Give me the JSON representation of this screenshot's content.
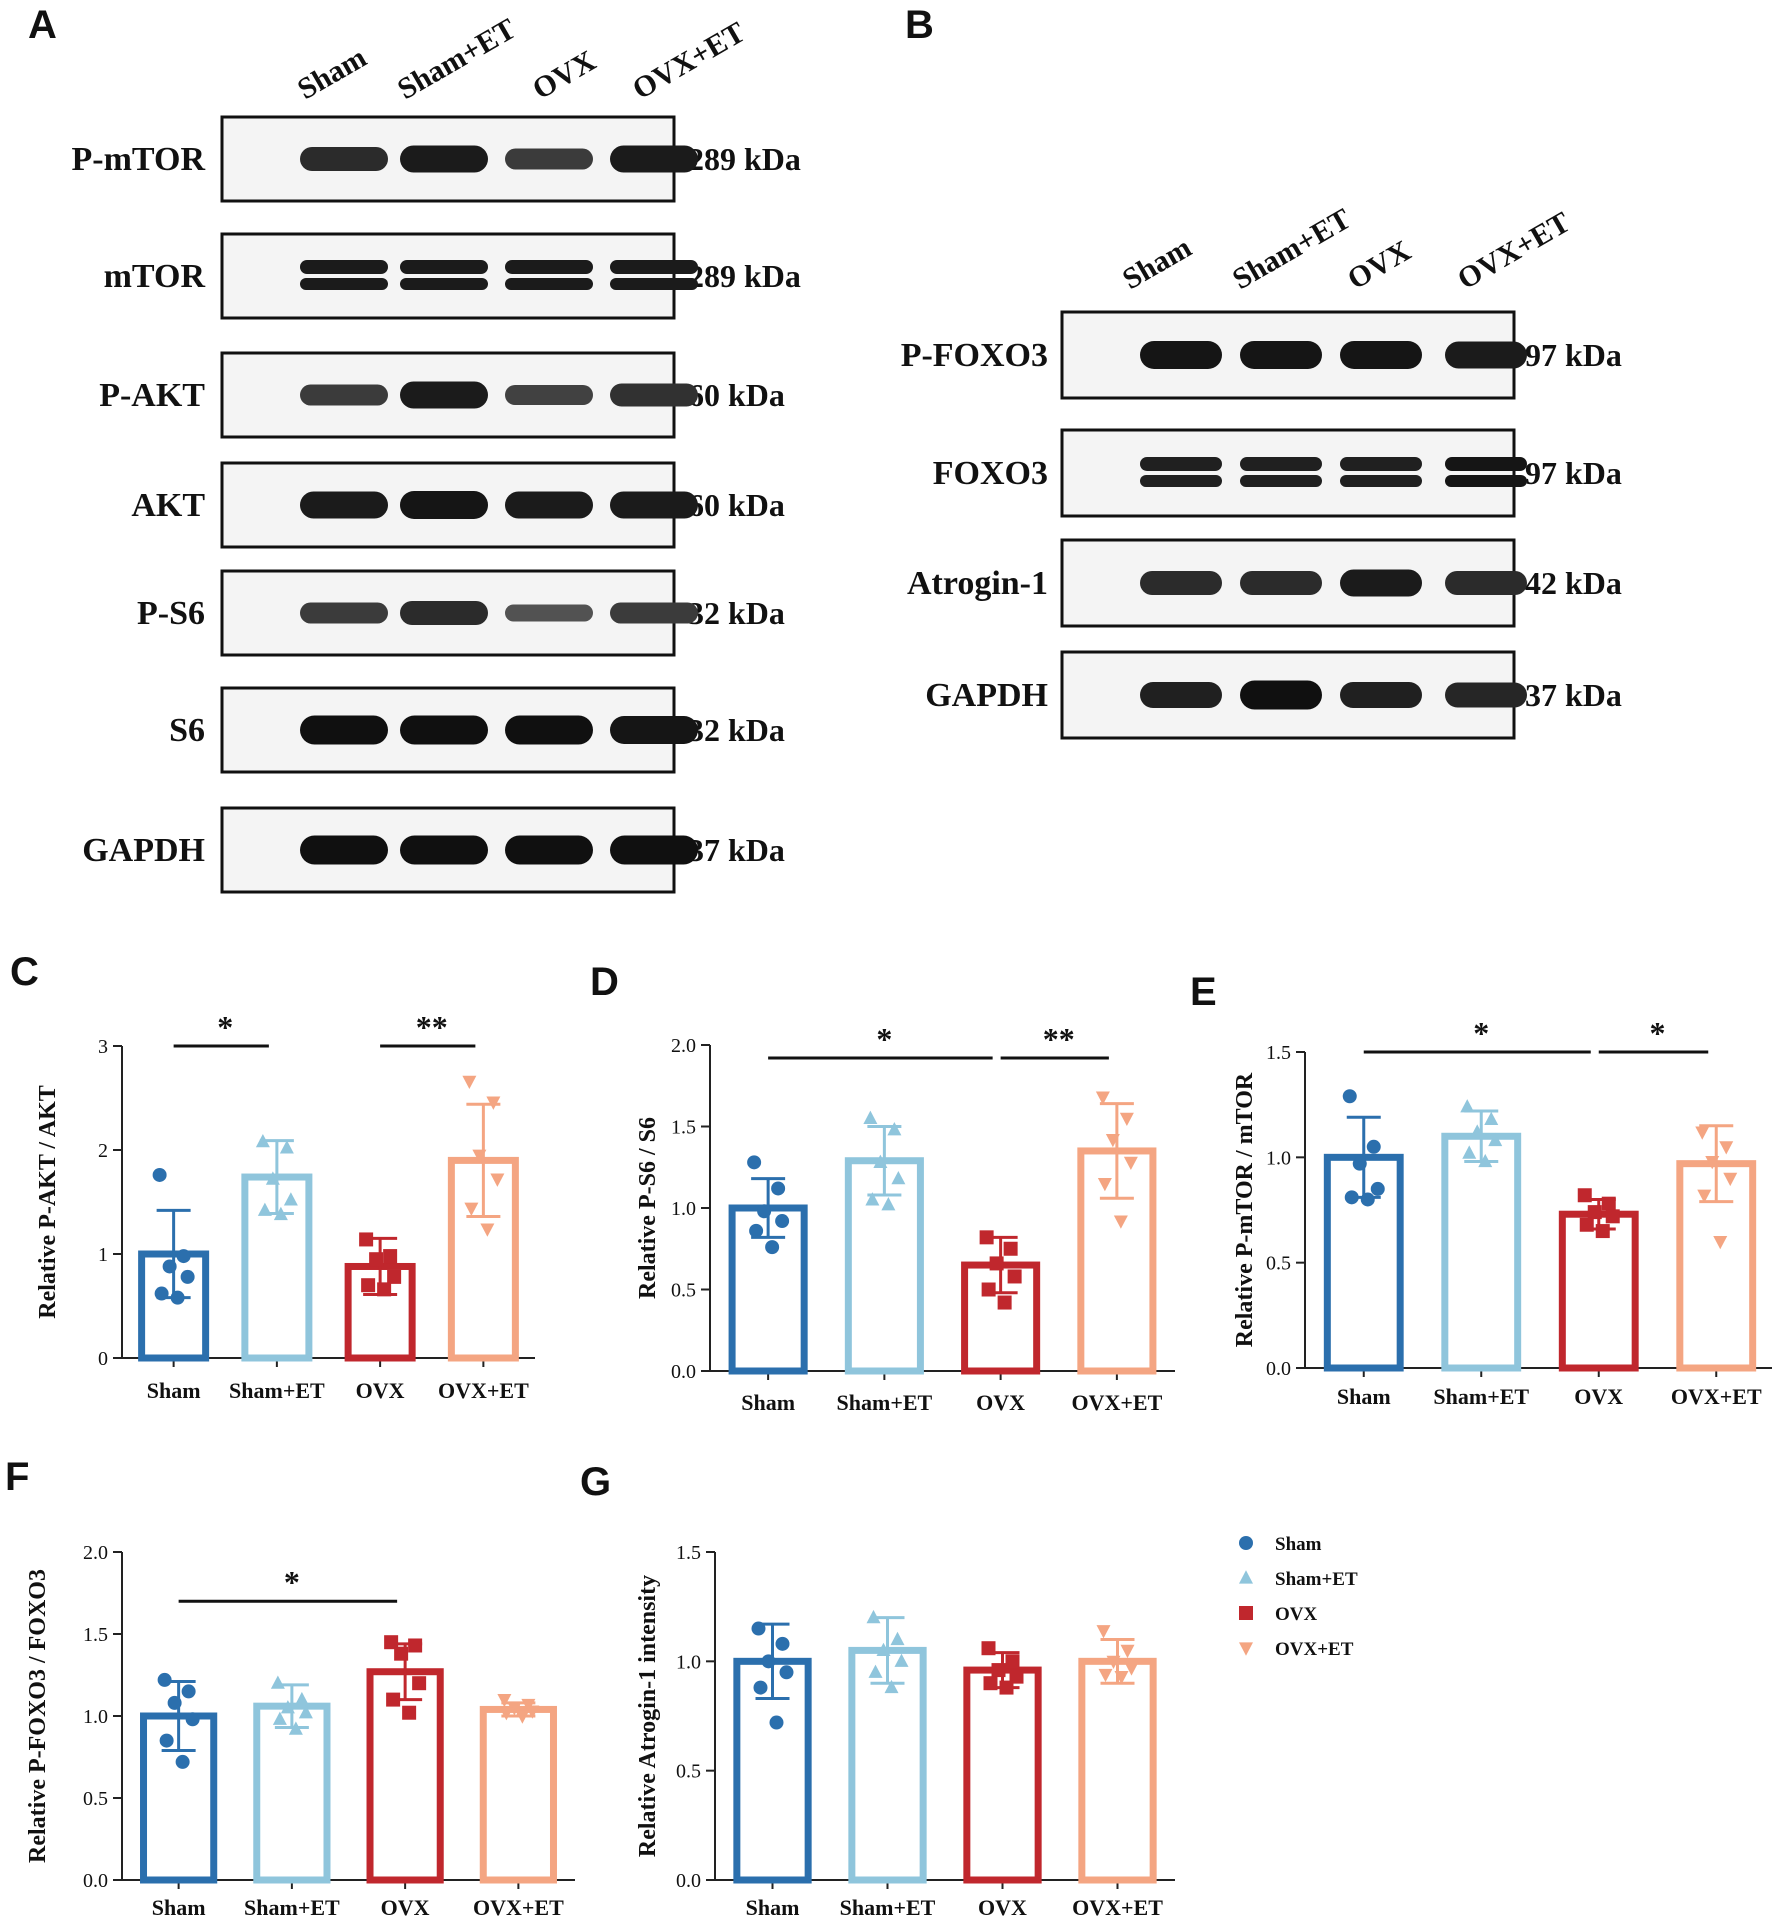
{
  "figure": {
    "panel_letters": [
      "A",
      "B",
      "C",
      "D",
      "E",
      "F",
      "G"
    ],
    "legend": [
      {
        "label": "Sham",
        "marker": "circle",
        "color": "#2b6fad"
      },
      {
        "label": "Sham+ET",
        "marker": "triangle-up",
        "color": "#8fc5dc"
      },
      {
        "label": "OVX",
        "marker": "square",
        "color": "#c0272d"
      },
      {
        "label": "OVX+ET",
        "marker": "triangle-down",
        "color": "#f4a582"
      }
    ]
  },
  "blots": [
    {
      "letter": "A",
      "lanes": [
        "Sham",
        "Sham+ET",
        "OVX",
        "OVX+ET"
      ],
      "rows": [
        {
          "protein": "P-mTOR",
          "size": "289 kDa",
          "intensity": [
            0.7,
            0.85,
            0.55,
            0.85
          ],
          "double": false
        },
        {
          "protein": "mTOR",
          "size": "289 kDa",
          "intensity": [
            0.85,
            0.85,
            0.85,
            0.85
          ],
          "double": true
        },
        {
          "protein": "P-AKT",
          "size": "60 kDa",
          "intensity": [
            0.55,
            0.85,
            0.5,
            0.65
          ],
          "double": false
        },
        {
          "protein": "AKT",
          "size": "60 kDa",
          "intensity": [
            0.85,
            0.9,
            0.85,
            0.85
          ],
          "double": false
        },
        {
          "protein": "P-S6",
          "size": "32 kDa",
          "intensity": [
            0.55,
            0.7,
            0.35,
            0.55
          ],
          "double": false
        },
        {
          "protein": "S6",
          "size": "32 kDa",
          "intensity": [
            0.95,
            0.95,
            0.95,
            0.9
          ],
          "double": false
        },
        {
          "protein": "GAPDH",
          "size": "37 kDa",
          "intensity": [
            0.95,
            0.95,
            0.95,
            0.95
          ],
          "double": false
        }
      ]
    },
    {
      "letter": "B",
      "lanes": [
        "Sham",
        "Sham+ET",
        "OVX",
        "OVX+ET"
      ],
      "rows": [
        {
          "protein": "P-FOXO3",
          "size": "97 kDa",
          "intensity": [
            0.9,
            0.9,
            0.9,
            0.85
          ],
          "double": false
        },
        {
          "protein": "FOXO3",
          "size": "97 kDa",
          "intensity": [
            0.8,
            0.8,
            0.8,
            0.9
          ],
          "double": true
        },
        {
          "protein": "Atrogin-1",
          "size": "42 kDa",
          "intensity": [
            0.7,
            0.7,
            0.85,
            0.7
          ],
          "double": false
        },
        {
          "protein": "GAPDH",
          "size": "37 kDa",
          "intensity": [
            0.8,
            0.95,
            0.8,
            0.75
          ],
          "double": false
        }
      ]
    }
  ],
  "chart_data": [
    {
      "type": "bar",
      "letter": "C",
      "categories": [
        "Sham",
        "Sham+ET",
        "OVX",
        "OVX+ET"
      ],
      "ylabel": "Relative P-AKT / AKT",
      "ylim": [
        0,
        3
      ],
      "yticks": [
        0,
        1,
        2,
        3
      ],
      "values": [
        1.0,
        1.74,
        0.88,
        1.9
      ],
      "sd": [
        0.42,
        0.35,
        0.27,
        0.54
      ],
      "points": [
        [
          1.76,
          0.98,
          0.88,
          0.78,
          0.62,
          0.58
        ],
        [
          2.08,
          2.02,
          1.72,
          1.52,
          1.42,
          1.38
        ],
        [
          1.14,
          0.98,
          0.95,
          0.78,
          0.7,
          0.66
        ],
        [
          2.66,
          2.46,
          1.95,
          1.72,
          1.44,
          1.24
        ]
      ],
      "significance": [
        {
          "from": 0,
          "to": 1,
          "label": "*",
          "y": 3.0
        },
        {
          "from": 2,
          "to": 3,
          "label": "**",
          "y": 3.0
        }
      ]
    },
    {
      "type": "bar",
      "letter": "D",
      "categories": [
        "Sham",
        "Sham+ET",
        "OVX",
        "OVX+ET"
      ],
      "ylabel": "Relative P-S6 / S6",
      "ylim": [
        0,
        2.0
      ],
      "yticks": [
        "0.0",
        "0.5",
        "1.0",
        "1.5",
        "2.0"
      ],
      "values": [
        1.0,
        1.29,
        0.65,
        1.35
      ],
      "sd": [
        0.18,
        0.21,
        0.17,
        0.29
      ],
      "points": [
        [
          1.28,
          1.12,
          0.98,
          0.92,
          0.86,
          0.76
        ],
        [
          1.55,
          1.48,
          1.28,
          1.18,
          1.05,
          1.02
        ],
        [
          0.82,
          0.75,
          0.66,
          0.58,
          0.5,
          0.42
        ],
        [
          1.68,
          1.55,
          1.42,
          1.28,
          1.15,
          0.92
        ]
      ],
      "significance": [
        {
          "from": 0,
          "to": 2,
          "label": "*",
          "y": 1.92
        },
        {
          "from": 2,
          "to": 3,
          "label": "**",
          "y": 1.92
        }
      ]
    },
    {
      "type": "bar",
      "letter": "E",
      "categories": [
        "Sham",
        "Sham+ET",
        "OVX",
        "OVX+ET"
      ],
      "ylabel": "Relative P-mTOR / mTOR",
      "ylim": [
        0,
        1.5
      ],
      "yticks": [
        "0.0",
        "0.5",
        "1.0",
        "1.5"
      ],
      "values": [
        1.0,
        1.1,
        0.73,
        0.97
      ],
      "sd": [
        0.19,
        0.12,
        0.07,
        0.18
      ],
      "points": [
        [
          1.29,
          1.05,
          0.97,
          0.85,
          0.81,
          0.8
        ],
        [
          1.24,
          1.18,
          1.12,
          1.08,
          1.02,
          0.98
        ],
        [
          0.82,
          0.78,
          0.74,
          0.72,
          0.68,
          0.65
        ],
        [
          1.12,
          1.05,
          0.98,
          0.9,
          0.82,
          0.6
        ]
      ],
      "significance": [
        {
          "from": 0,
          "to": 2,
          "label": "*",
          "y": 1.5
        },
        {
          "from": 2,
          "to": 3,
          "label": "*",
          "y": 1.5
        }
      ]
    },
    {
      "type": "bar",
      "letter": "F",
      "categories": [
        "Sham",
        "Sham+ET",
        "OVX",
        "OVX+ET"
      ],
      "ylabel": "Relative P-FOXO3 / FOXO3",
      "ylim": [
        0,
        2.0
      ],
      "yticks": [
        "0.0",
        "0.5",
        "1.0",
        "1.5",
        "2.0"
      ],
      "values": [
        1.0,
        1.06,
        1.27,
        1.04
      ],
      "sd": [
        0.21,
        0.13,
        0.17,
        0.04
      ],
      "points": [
        [
          1.22,
          1.15,
          1.08,
          0.98,
          0.85,
          0.72
        ],
        [
          1.2,
          1.1,
          1.05,
          1.02,
          0.98,
          0.92
        ],
        [
          1.45,
          1.43,
          1.38,
          1.2,
          1.1,
          1.02
        ],
        [
          1.1,
          1.07,
          1.05,
          1.03,
          1.02,
          1.0
        ]
      ],
      "significance": [
        {
          "from": 0,
          "to": 2,
          "label": "*",
          "y": 1.7
        }
      ]
    },
    {
      "type": "bar",
      "letter": "G",
      "categories": [
        "Sham",
        "Sham+ET",
        "OVX",
        "OVX+ET"
      ],
      "ylabel": "Relative Atrogin-1 intensity",
      "ylim": [
        0,
        1.5
      ],
      "yticks": [
        "0.0",
        "0.5",
        "1.0",
        "1.5"
      ],
      "values": [
        1.0,
        1.05,
        0.96,
        1.0
      ],
      "sd": [
        0.17,
        0.15,
        0.08,
        0.1
      ],
      "points": [
        [
          1.15,
          1.08,
          1.0,
          0.95,
          0.88,
          0.72
        ],
        [
          1.2,
          1.1,
          1.05,
          1.0,
          0.95,
          0.88
        ],
        [
          1.06,
          1.0,
          0.96,
          0.93,
          0.9,
          0.88
        ],
        [
          1.14,
          1.05,
          1.0,
          0.97,
          0.94,
          0.93
        ]
      ],
      "significance": []
    }
  ]
}
